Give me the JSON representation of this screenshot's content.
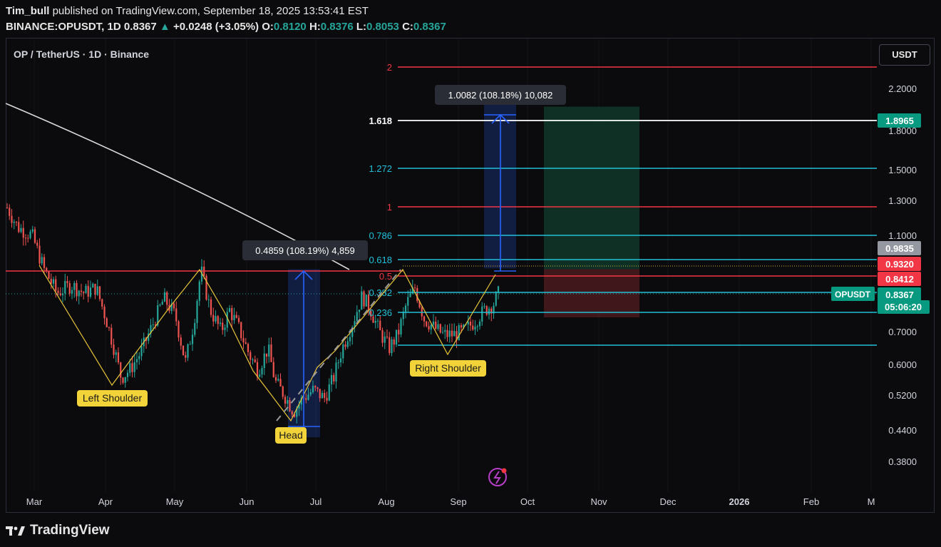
{
  "header": {
    "author": "Tim_bull",
    "published": "published on TradingView.com, September 18, 2025 13:53:41 EST",
    "symbol_line": "BINANCE:OPUSDT, 1D",
    "last": "0.8367",
    "change": "+0.0248 (+3.05%)",
    "o_label": "O:",
    "o": "0.8120",
    "h_label": "H:",
    "h": "0.8376",
    "l_label": "L:",
    "l": "0.8053",
    "c_label": "C:",
    "c": "0.8367"
  },
  "chart_title": "OP / TetherUS · 1D · Binance",
  "currency_button": "USDT",
  "footer": {
    "brand": "TradingView"
  },
  "colors": {
    "background": "#0b0b0d",
    "up": "#26a69a",
    "down": "#ef5350",
    "fib_red": "#f23645",
    "fib_cyan": "#22c0d8",
    "pattern_yellow": "#e8c53a",
    "label_yellow": "#f2d33a",
    "measure_blue": "#2962ff"
  },
  "chart_data": {
    "type": "candlestick",
    "scale": "log",
    "ylim": [
      0.36,
      2.45
    ],
    "y_ticks": [
      "2.2000",
      "1.8000",
      "1.5000",
      "1.3000",
      "1.1000",
      "0.7000",
      "0.6000",
      "0.5200",
      "0.4400",
      "0.3800"
    ],
    "x_ticks": [
      "Mar",
      "Apr",
      "May",
      "Jun",
      "Jul",
      "Aug",
      "Sep",
      "Oct",
      "Nov",
      "Dec",
      "2026",
      "Feb",
      "M"
    ],
    "fib_levels": [
      {
        "label": "2",
        "color": "#f23645"
      },
      {
        "label": "1.618",
        "color": "#ffffff"
      },
      {
        "label": "1.272",
        "color": "#22c0d8"
      },
      {
        "label": "1",
        "color": "#f23645"
      },
      {
        "label": "0.786",
        "color": "#22c0d8"
      },
      {
        "label": "0.618",
        "color": "#22c0d8"
      },
      {
        "label": "0.5",
        "color": "#f23645"
      },
      {
        "label": "0.382",
        "color": "#22c0d8"
      },
      {
        "label": "0.236",
        "color": "#22c0d8"
      }
    ],
    "price_tags": [
      {
        "value": "1.8965",
        "color": "#089981"
      },
      {
        "value": "0.9835",
        "color": "#9598a1"
      },
      {
        "value": "0.9320",
        "color": "#f23645"
      },
      {
        "value": "0.8412",
        "color": "#f23645"
      },
      {
        "value": "0.8367",
        "color": "#089981"
      }
    ],
    "countdown": "05:06:20",
    "symbol_tag": "OPUSDT",
    "measure_1": "0.4859 (108.19%) 4,859",
    "measure_2": "1.0082 (108.18%) 10,082",
    "pattern_labels": [
      "Left Shoulder",
      "Head",
      "Right Shoulder"
    ]
  }
}
